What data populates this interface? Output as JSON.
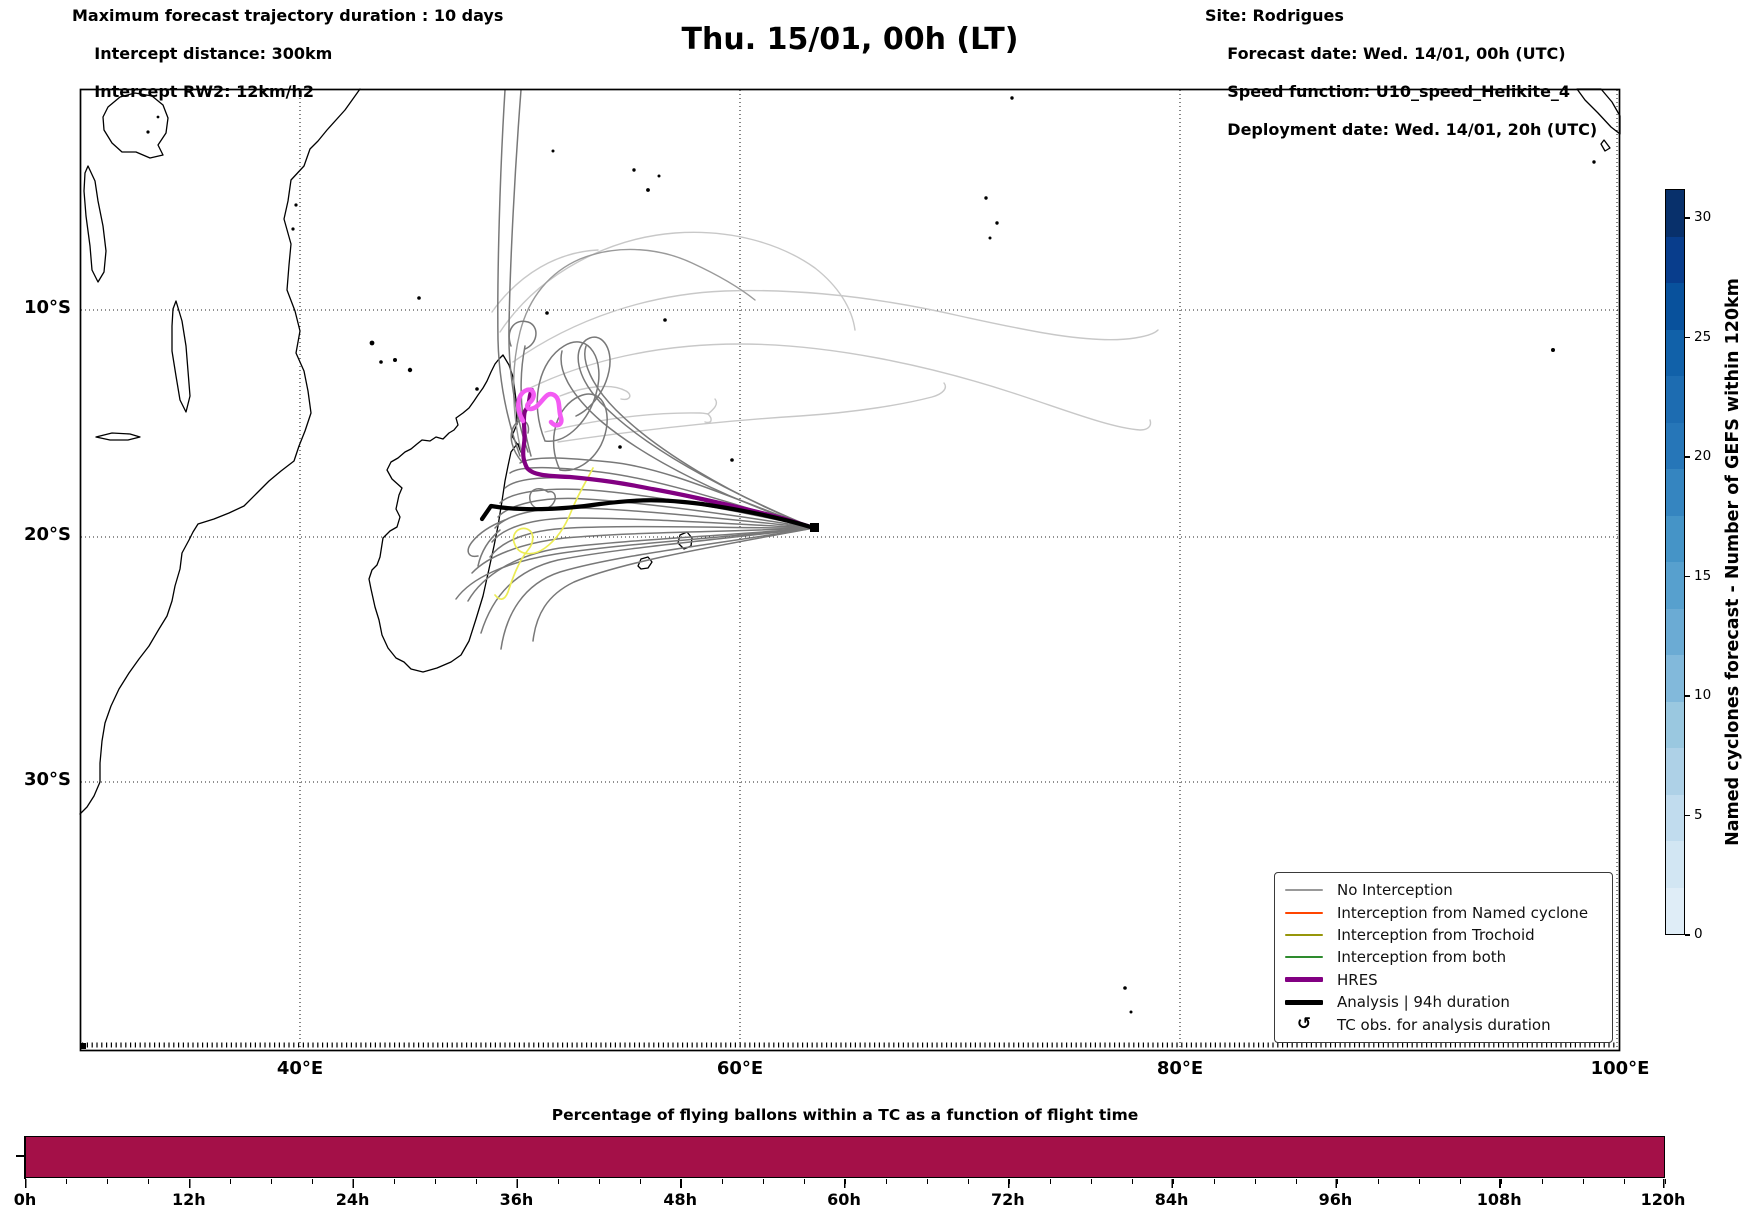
{
  "header": {
    "left_lines": [
      "Maximum forecast trajectory duration : 10 days",
      "Intercept distance: 300km",
      "Intercept RW2: 12km/h2"
    ],
    "title": "Thu. 15/01, 00h (LT)",
    "right_lines": [
      "Site: Rodrigues",
      "Forecast date: Wed. 14/01, 00h (UTC)",
      "Speed function: U10_speed_Helikite_4",
      "Deployment date: Wed. 14/01, 20h (UTC)"
    ]
  },
  "map": {
    "x_ticks": [
      "40°E",
      "60°E",
      "80°E",
      "100°E"
    ],
    "y_ticks": [
      "10°S",
      "20°S",
      "30°S"
    ]
  },
  "legend": {
    "items": [
      {
        "label": "No Interception",
        "color": "#999999",
        "thick": false,
        "type": "line"
      },
      {
        "label": "Interception from Named cyclone",
        "color": "#ff4500",
        "thick": false,
        "type": "line"
      },
      {
        "label": "Interception from Trochoid",
        "color": "#96960a",
        "thick": false,
        "type": "line"
      },
      {
        "label": "Interception from both",
        "color": "#2e8b2e",
        "thick": false,
        "type": "line"
      },
      {
        "label": "HRES",
        "color": "#820082",
        "thick": true,
        "type": "line"
      },
      {
        "label": "Analysis | 94h duration",
        "color": "#000000",
        "thick": true,
        "type": "line"
      },
      {
        "label": "TC obs. for analysis duration",
        "color": "#000000",
        "thick": false,
        "type": "glyph",
        "glyph": "↺"
      }
    ]
  },
  "colorbar": {
    "label": "Named cyclones forecast - Number of GEFS within 120km",
    "ticks": [
      {
        "label": "0",
        "value": 0
      },
      {
        "label": "5",
        "value": 5
      },
      {
        "label": "10",
        "value": 10
      },
      {
        "label": "15",
        "value": 15
      },
      {
        "label": "20",
        "value": 20
      },
      {
        "label": "25",
        "value": 25
      },
      {
        "label": "30",
        "value": 30
      }
    ],
    "palette_top_to_bottom": [
      "#08306b",
      "#083d8c",
      "#08519c",
      "#1161a9",
      "#1d6cb1",
      "#2676b8",
      "#3585c0",
      "#4594c7",
      "#57a0ce",
      "#6babd4",
      "#82b9db",
      "#9ac8e0",
      "#aed1e7",
      "#c1dcee",
      "#d2e6f3",
      "#dfedf7"
    ]
  },
  "bottom_chart": {
    "title": "Percentage of flying ballons within a TC as a function of flight time",
    "x_labels": [
      "0h",
      "12h",
      "24h",
      "36h",
      "48h",
      "60h",
      "72h",
      "84h",
      "96h",
      "108h",
      "120h"
    ],
    "bar_color": "#a41048"
  },
  "chart_data": [
    {
      "type": "line",
      "subtype": "balloon-trajectory-map",
      "title": "Thu. 15/01, 00h (LT)",
      "map_extent": {
        "lon_min": 30,
        "lon_max": 100,
        "lat_min": -40,
        "lat_max": 0
      },
      "x_ticks_lon": [
        40,
        60,
        80,
        100
      ],
      "y_ticks_lat": [
        -10,
        -20,
        -30
      ],
      "grid": "dotted",
      "release_site": {
        "name": "Rodrigues",
        "lon": 63.4,
        "lat": -19.7
      },
      "series": [
        {
          "name": "No Interception",
          "color": "#7a7a7a",
          "description": "about 25 GEFS balloon trajectories fanning west from Rodrigues (63.4E,19.7S) toward the Madagascar east coast (47-53E, 12-23S); several loop north along 50E up to the equator; faded light-gray arcs extend northeast to about 80E between 8S and 15S"
        },
        {
          "name": "Interception from Named cyclone",
          "color": "#ff4500",
          "description": "none visible on map"
        },
        {
          "name": "Interception from Trochoid",
          "color": "#96960a",
          "description": "one yellow trajectory looping south across 20S down to about 23S near 49-53E"
        },
        {
          "name": "Interception from both",
          "color": "#2e8b2e",
          "description": "none visible on map"
        },
        {
          "name": "HRES",
          "color": "#820082",
          "description": "thick purple track from Rodrigues west to about 50E,19S then north to 14.5S, ending in a bright magenta squiggle near 51E,14S"
        },
        {
          "name": "Analysis | 94h duration",
          "color": "#000000",
          "description": "thick black track from Madagascar east coast (49E,19S) east to Rodrigues, square marker at 63.4E,19.7S"
        }
      ]
    },
    {
      "type": "bar",
      "title": "Percentage of flying ballons within a TC as a function of flight time",
      "categories": [
        "0h",
        "12h",
        "24h",
        "36h",
        "48h",
        "60h",
        "72h",
        "84h",
        "96h",
        "108h",
        "120h"
      ],
      "values": [
        100,
        100,
        100,
        100,
        100,
        100,
        100,
        100,
        100,
        100,
        100
      ],
      "xlabel": "",
      "ylabel": "",
      "ylim": [
        0,
        100
      ],
      "note": "single uniform full-height crimson bar spanning 0h-120h, minor ticks every 3h"
    },
    {
      "type": "heatmap",
      "subtype": "colorbar",
      "title": "Named cyclones forecast - Number of GEFS within 120km",
      "ticks": [
        0,
        5,
        10,
        15,
        20,
        25,
        30
      ],
      "range": [
        0,
        32
      ],
      "palette": "Blues, 16 discrete steps"
    }
  ]
}
